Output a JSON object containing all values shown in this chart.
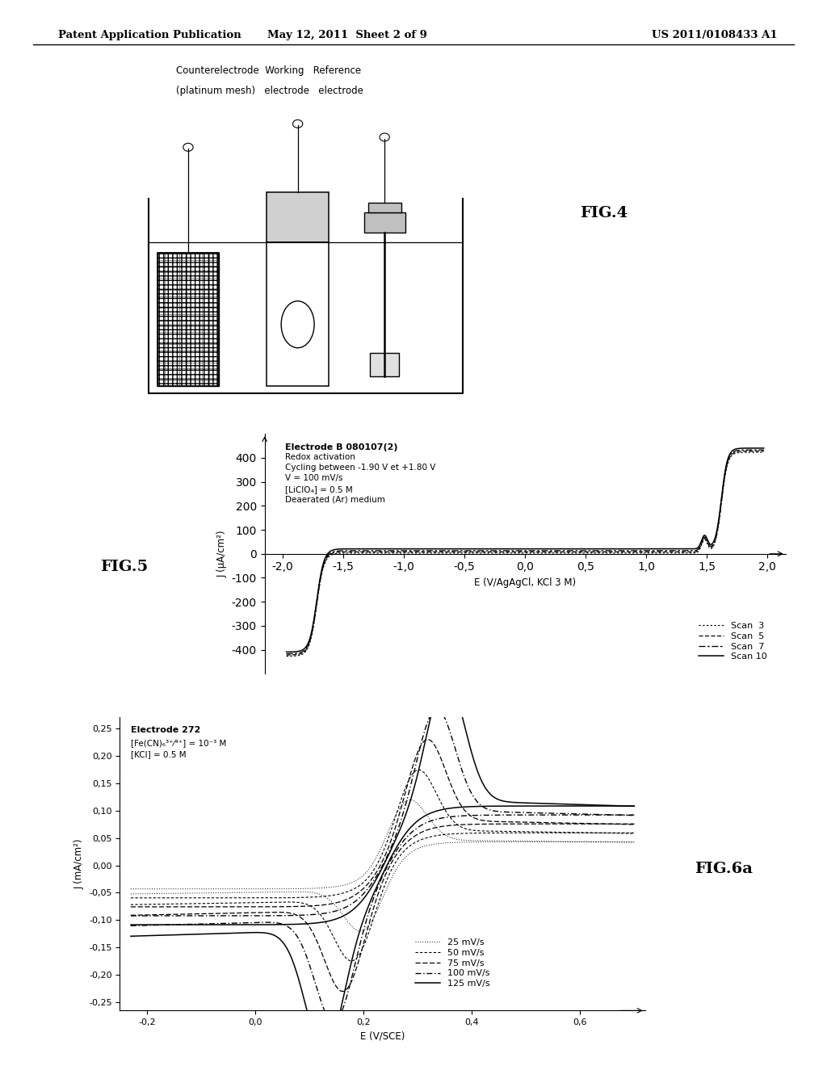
{
  "header_left": "Patent Application Publication",
  "header_center": "May 12, 2011  Sheet 2 of 9",
  "header_right": "US 2011/0108433 A1",
  "fig4_label": "FIG.4",
  "fig5_label": "FIG.5",
  "fig5_annotation_bold": "Electrode B 080107(2)",
  "fig5_annotation_rest": "Redox activation\nCycling between -1.90 V et +1.80 V\nV = 100 mV/s\n[LiClO₄] = 0.5 M\nDeaerated (Ar) medium",
  "fig5_ylabel": "J (μA/cm²)",
  "fig5_xlabel": "E (V/AgAgCl, KCl 3 M)",
  "fig5_xlim": [
    -2.15,
    2.15
  ],
  "fig5_ylim": [
    -500,
    500
  ],
  "fig5_xticks": [
    -2.0,
    -1.5,
    -1.0,
    -0.5,
    0.0,
    0.5,
    1.0,
    1.5,
    2.0
  ],
  "fig5_yticks": [
    -400,
    -300,
    -200,
    -100,
    0,
    100,
    200,
    300,
    400
  ],
  "fig5_legend": [
    "Scan  3",
    "Scan  5",
    "Scan  7",
    "Scan 10"
  ],
  "fig6a_label": "FIG.6a",
  "fig6a_annotation_bold": "Electrode 272",
  "fig6a_annotation_rest": "[Fe(CN)₆³⁺⁄⁴⁺] = 10⁻³ M\n[KCl] = 0.5 M",
  "fig6a_ylabel": "J (mA/cm²)",
  "fig6a_xlabel": "E (V/SCE)",
  "fig6a_xlim": [
    -0.25,
    0.72
  ],
  "fig6a_ylim": [
    -0.265,
    0.27
  ],
  "fig6a_xticks": [
    -0.2,
    0.0,
    0.2,
    0.4,
    0.6
  ],
  "fig6a_yticks": [
    -0.25,
    -0.2,
    -0.15,
    -0.1,
    -0.05,
    0.0,
    0.05,
    0.1,
    0.15,
    0.2,
    0.25
  ],
  "fig6a_legend": [
    "25 mV/s",
    "50 mV/s",
    "75 mV/s",
    "100 mV/s",
    "125 mV/s"
  ],
  "bg_color": "#ffffff",
  "line_color": "#1a1a1a"
}
